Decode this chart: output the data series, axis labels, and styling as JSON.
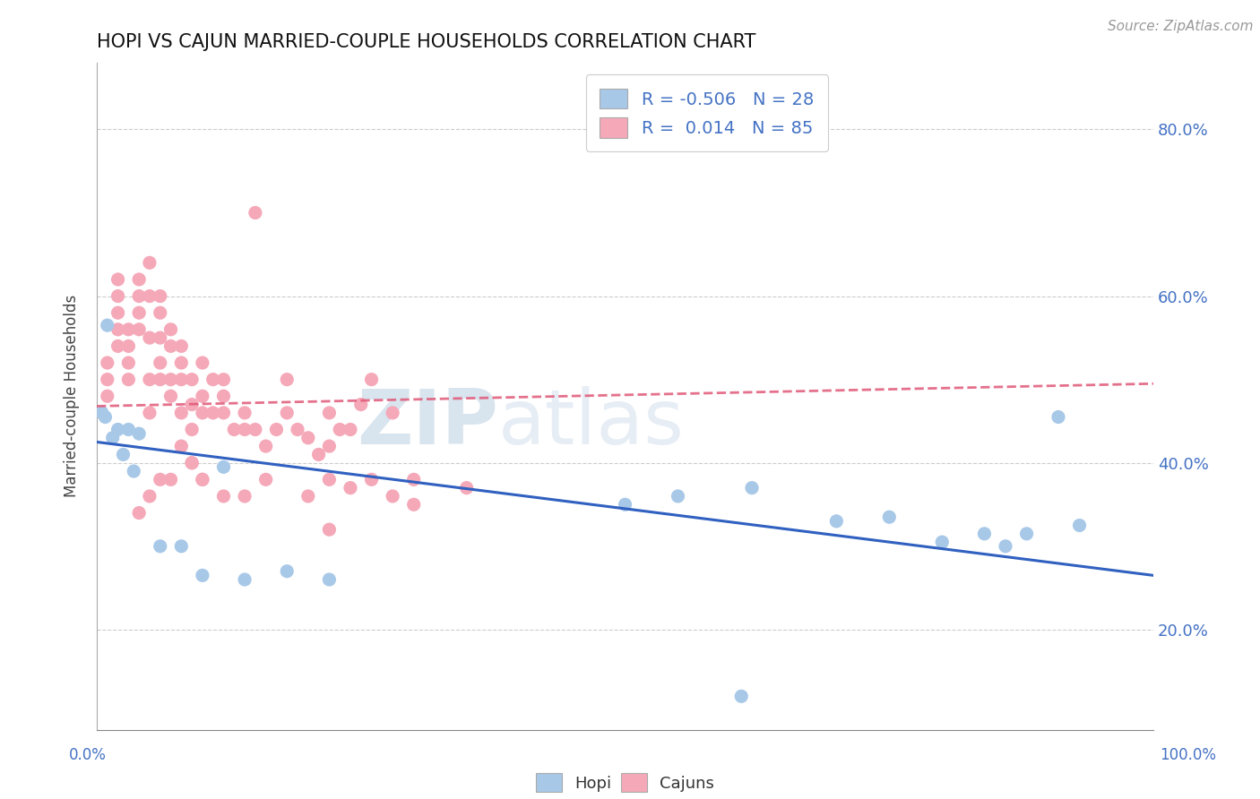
{
  "title": "HOPI VS CAJUN MARRIED-COUPLE HOUSEHOLDS CORRELATION CHART",
  "source": "Source: ZipAtlas.com",
  "ylabel": "Married-couple Households",
  "xlim": [
    0.0,
    1.0
  ],
  "ylim": [
    0.08,
    0.88
  ],
  "yticks": [
    0.2,
    0.4,
    0.6,
    0.8
  ],
  "ytick_labels": [
    "20.0%",
    "40.0%",
    "60.0%",
    "80.0%"
  ],
  "hopi_color": "#a8c8e8",
  "cajun_color": "#f5a8b8",
  "hopi_line_color": "#3060c0",
  "cajun_line_color": "#e05878",
  "hopi_R": -0.506,
  "hopi_N": 28,
  "cajun_R": 0.014,
  "cajun_N": 85,
  "grid_color": "#cccccc",
  "background_color": "#ffffff",
  "hopi_line_y0": 0.425,
  "hopi_line_y1": 0.265,
  "cajun_line_y0": 0.468,
  "cajun_line_y1": 0.495,
  "hopi_scatter_x": [
    0.005,
    0.008,
    0.01,
    0.015,
    0.02,
    0.025,
    0.03,
    0.035,
    0.04,
    0.06,
    0.08,
    0.1,
    0.12,
    0.14,
    0.18,
    0.22,
    0.5,
    0.55,
    0.62,
    0.7,
    0.75,
    0.8,
    0.84,
    0.86,
    0.88,
    0.91,
    0.93,
    0.61
  ],
  "hopi_scatter_y": [
    0.46,
    0.455,
    0.565,
    0.43,
    0.44,
    0.41,
    0.44,
    0.39,
    0.435,
    0.3,
    0.3,
    0.265,
    0.395,
    0.26,
    0.27,
    0.26,
    0.35,
    0.36,
    0.37,
    0.33,
    0.335,
    0.305,
    0.315,
    0.3,
    0.315,
    0.455,
    0.325,
    0.12
  ],
  "cajun_scatter_x": [
    0.01,
    0.01,
    0.01,
    0.02,
    0.02,
    0.02,
    0.02,
    0.02,
    0.03,
    0.03,
    0.03,
    0.03,
    0.04,
    0.04,
    0.04,
    0.04,
    0.05,
    0.05,
    0.05,
    0.05,
    0.05,
    0.06,
    0.06,
    0.06,
    0.06,
    0.07,
    0.07,
    0.07,
    0.08,
    0.08,
    0.09,
    0.09,
    0.09,
    0.1,
    0.1,
    0.11,
    0.11,
    0.12,
    0.12,
    0.13,
    0.14,
    0.15,
    0.16,
    0.17,
    0.18,
    0.19,
    0.2,
    0.21,
    0.22,
    0.23,
    0.24,
    0.25,
    0.26,
    0.28,
    0.3,
    0.14,
    0.18,
    0.22,
    0.06,
    0.07,
    0.08,
    0.09,
    0.1,
    0.12,
    0.14,
    0.16,
    0.2,
    0.22,
    0.24,
    0.26,
    0.28,
    0.3,
    0.35,
    0.15,
    0.08,
    0.1,
    0.12,
    0.04,
    0.05,
    0.06,
    0.07,
    0.08,
    0.09,
    0.1,
    0.22
  ],
  "cajun_scatter_y": [
    0.48,
    0.52,
    0.5,
    0.54,
    0.56,
    0.58,
    0.6,
    0.62,
    0.56,
    0.54,
    0.52,
    0.5,
    0.58,
    0.56,
    0.6,
    0.62,
    0.6,
    0.55,
    0.5,
    0.46,
    0.64,
    0.55,
    0.52,
    0.58,
    0.5,
    0.56,
    0.54,
    0.5,
    0.52,
    0.54,
    0.47,
    0.44,
    0.5,
    0.48,
    0.52,
    0.5,
    0.46,
    0.46,
    0.5,
    0.44,
    0.46,
    0.44,
    0.42,
    0.44,
    0.46,
    0.44,
    0.43,
    0.41,
    0.42,
    0.44,
    0.44,
    0.47,
    0.5,
    0.46,
    0.38,
    0.44,
    0.5,
    0.46,
    0.38,
    0.38,
    0.42,
    0.4,
    0.38,
    0.36,
    0.36,
    0.38,
    0.36,
    0.38,
    0.37,
    0.38,
    0.36,
    0.35,
    0.37,
    0.7,
    0.5,
    0.46,
    0.48,
    0.34,
    0.36,
    0.6,
    0.48,
    0.46,
    0.4,
    0.38,
    0.32
  ],
  "watermark_zip": "ZIP",
  "watermark_atlas": "atlas",
  "xtick_bottom_left": "0.0%",
  "xtick_bottom_right": "100.0%"
}
